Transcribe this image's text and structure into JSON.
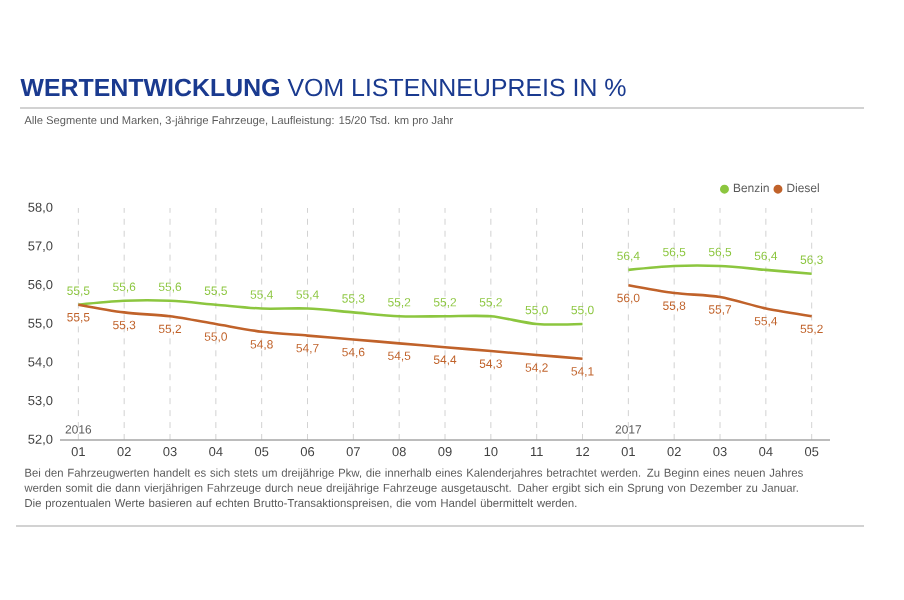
{
  "chart_data": {
    "type": "line",
    "title": "**WERTENTWICKLUNG** VOM LISTENNEUPREIS IN %",
    "subtitle": "Alle Segmente und Marken, 3-jährige Fahrzeuge, Laufleistung: 15/20 Tsd. km pro Jahr",
    "categories": [
      "01",
      "02",
      "03",
      "04",
      "05",
      "06",
      "07",
      "08",
      "09",
      "10",
      "11",
      "12",
      "01",
      "02",
      "03",
      "04",
      "05"
    ],
    "series": [
      {
        "name": "Benzin",
        "color": "#8cc63f",
        "values": [
          55.5,
          55.6,
          55.6,
          55.5,
          55.4,
          55.4,
          55.3,
          55.2,
          55.2,
          55.2,
          55.0,
          55.0,
          null,
          null,
          null,
          null,
          null
        ],
        "value_labels": [
          "55,5",
          "55,6",
          "55,6",
          "55,5",
          "55,4",
          "55,4",
          "55,3",
          "55,2",
          "55,2",
          "55,2",
          "55,0",
          "55,0",
          null,
          null,
          null,
          null,
          null
        ]
      },
      {
        "name": "Diesel",
        "color": "#c0622a",
        "values": [
          55.5,
          55.3,
          55.2,
          55.0,
          54.8,
          54.7,
          54.6,
          54.5,
          54.4,
          54.3,
          54.2,
          54.1,
          null,
          null,
          null,
          null,
          null
        ],
        "value_labels": [
          "55,5",
          "55,3",
          "55,2",
          "55,0",
          "54,8",
          "54,7",
          "54,6",
          "54,5",
          "54,4",
          "54,3",
          "54,2",
          "54,1",
          null,
          null,
          null,
          null,
          null
        ]
      },
      {
        "color": "#8cc63f",
        "values": [
          null,
          null,
          null,
          null,
          null,
          null,
          null,
          null,
          null,
          null,
          null,
          null,
          56.4,
          56.5,
          56.5,
          56.4,
          56.3
        ],
        "value_labels": [
          null,
          null,
          null,
          null,
          null,
          null,
          null,
          null,
          null,
          null,
          null,
          null,
          "56,4",
          "56,5",
          "56,5",
          "56,4",
          "56,3"
        ]
      },
      {
        "color": "#c0622a",
        "values": [
          null,
          null,
          null,
          null,
          null,
          null,
          null,
          null,
          null,
          null,
          null,
          null,
          56.0,
          55.8,
          55.7,
          55.4,
          55.2
        ],
        "value_labels": [
          null,
          null,
          null,
          null,
          null,
          null,
          null,
          null,
          null,
          null,
          null,
          null,
          "56,0",
          "55,8",
          "55,7",
          "55,4",
          "55,2"
        ]
      }
    ],
    "ylim": [
      52,
      58
    ],
    "yticks": [
      {
        "value": 52,
        "label": "52,0"
      },
      {
        "value": 53,
        "label": "53,0"
      },
      {
        "value": 54,
        "label": "54,0"
      },
      {
        "value": 55,
        "label": "55,0"
      },
      {
        "value": 56,
        "label": "56,0"
      },
      {
        "value": 57,
        "label": "57,0"
      },
      {
        "value": 58,
        "label": "58,0"
      }
    ],
    "grid": "x",
    "legend": "top right",
    "marker": "none",
    "line_style": "solid",
    "annotations": [
      "2016",
      "2017",
      "Bei den Fahrzeugwerten handelt es sich stets um dreijährige Pkw, die innerhalb eines Kalenderjahres betrachtet werden. Zu Beginn eines neuen Jahres werden somit die dann vierjährigen Fahrzeuge durch neue dreijährige Fahrzeuge ausgetauscht. Daher ergibt sich ein Sprung von Dezember zu Januar. Die prozentualen Werte basieren auf echten Brutto-Transaktionspreisen, die vom Handel übermittelt werden."
    ]
  }
}
